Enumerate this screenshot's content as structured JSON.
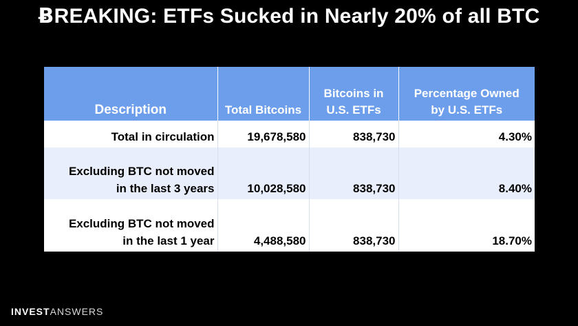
{
  "headline": {
    "glyph": "Ƀ",
    "text": "REAKING: ETFs Sucked in Nearly 20% of all BTC"
  },
  "table": {
    "headers": [
      {
        "line1": "",
        "line2": "Description"
      },
      {
        "line1": "",
        "line2": "Total Bitcoins"
      },
      {
        "line1": "Bitcoins in",
        "line2": "U.S. ETFs"
      },
      {
        "line1": "Percentage Owned",
        "line2": "by U.S. ETFs"
      }
    ],
    "rows": [
      {
        "description_line1": "",
        "description_line2": "Total in circulation",
        "total": "19,678,580",
        "in_etfs": "838,730",
        "percent": "4.30%"
      },
      {
        "description_line1": "Excluding BTC not moved",
        "description_line2": "in the last 3 years",
        "total": "10,028,580",
        "in_etfs": "838,730",
        "percent": "8.40%"
      },
      {
        "description_line1": "Excluding BTC not moved",
        "description_line2": "in the last 1 year",
        "total": "4,488,580",
        "in_etfs": "838,730",
        "percent": "18.70%"
      }
    ]
  },
  "brand": {
    "strong": "INVEST",
    "light": "ANSWERS"
  },
  "colors": {
    "background": "#000000",
    "header_fill": "#6d9eeb",
    "row_alt_fill": "#e8eefb",
    "text_light": "#ffffff"
  }
}
